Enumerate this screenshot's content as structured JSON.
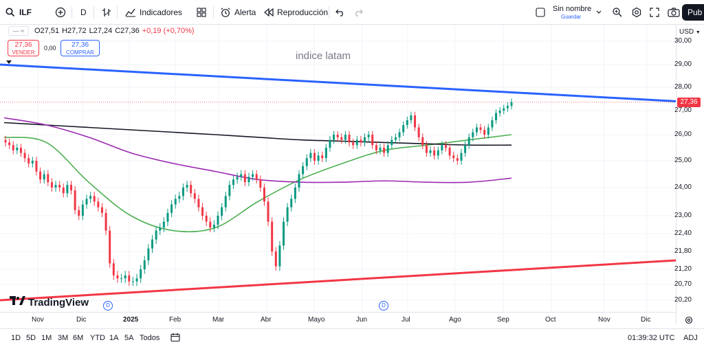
{
  "toolbar": {
    "symbol": "ILF",
    "interval": "D",
    "indicators_label": "Indicadores",
    "alert_label": "Alerta",
    "replay_label": "Reproducción",
    "layout_name": "Sin nombre",
    "save_label": "Guardar",
    "publish_label": "Pub"
  },
  "legend": {
    "open": "O27,51",
    "high": "H27,72",
    "low": "L27,24",
    "close": "C27,36",
    "change": "+0,19 (+0,70%)"
  },
  "trade": {
    "sell_price": "27,36",
    "sell_label": "VENDER",
    "spread": "0,00",
    "buy_price": "27,36",
    "buy_label": "COMPRAR"
  },
  "chart_title": "indice latam",
  "currency": "USD",
  "current_price": "27,36",
  "logo_text": "TradingView",
  "dividend_marker": "D",
  "bottom": {
    "ranges": [
      "1D",
      "5D",
      "1M",
      "3M",
      "6M",
      "YTD",
      "1A",
      "5A",
      "Todos"
    ],
    "clock": "01:39:32 UTC",
    "adj": "ADJ"
  },
  "colors": {
    "up": "#089981",
    "down": "#f23645",
    "blue_trend": "#2962ff",
    "red_trend": "#f23645",
    "ma_green": "#4caf50",
    "ma_black": "#131722",
    "ma_purple": "#9c27b0"
  },
  "chart_data": {
    "type": "candlestick",
    "title": "indice latam",
    "x_ticks": [
      "Nov",
      "Dic",
      "2025",
      "Feb",
      "Mar",
      "Abr",
      "Mayo",
      "Jun",
      "Jul",
      "Ago",
      "Sep",
      "Oct",
      "Nov",
      "Dic"
    ],
    "y_ticks": [
      "30,00",
      "29,00",
      "28,00",
      "27,00",
      "26,00",
      "25,00",
      "24,00",
      "23,00",
      "22,40",
      "21,80",
      "21,20",
      "20,70",
      "20,20"
    ],
    "ylim": [
      20.0,
      30.2
    ],
    "close_path": [
      25.7,
      25.6,
      25.4,
      25.5,
      25.3,
      25.1,
      24.9,
      25.0,
      24.6,
      24.3,
      24.5,
      24.2,
      24.0,
      24.1,
      24.0,
      23.8,
      24.1,
      23.9,
      23.2,
      23.0,
      23.4,
      23.6,
      23.7,
      23.5,
      23.3,
      23.1,
      22.5,
      21.4,
      21.0,
      20.9,
      20.9,
      21.0,
      20.8,
      20.8,
      20.9,
      21.2,
      21.5,
      21.9,
      22.2,
      22.5,
      22.6,
      22.8,
      23.1,
      23.4,
      23.6,
      23.7,
      24.0,
      24.1,
      23.8,
      23.6,
      23.3,
      23.0,
      22.8,
      22.6,
      22.7,
      23.0,
      23.3,
      23.7,
      24.1,
      24.3,
      24.4,
      24.5,
      24.2,
      24.4,
      24.5,
      24.3,
      24.0,
      23.5,
      22.8,
      21.8,
      21.3,
      22.0,
      22.8,
      23.3,
      23.6,
      24.0,
      24.5,
      24.8,
      25.1,
      25.3,
      25.0,
      25.2,
      25.1,
      25.5,
      25.8,
      26.0,
      25.9,
      25.8,
      26.0,
      25.7,
      25.6,
      25.8,
      25.7,
      25.9,
      26.0,
      25.6,
      25.4,
      25.5,
      25.3,
      25.6,
      25.8,
      25.9,
      26.1,
      26.4,
      26.6,
      26.8,
      26.3,
      25.9,
      25.6,
      25.3,
      25.4,
      25.2,
      25.4,
      25.6,
      25.5,
      25.2,
      25.1,
      25.0,
      25.3,
      25.6,
      25.9,
      26.1,
      26.3,
      26.2,
      26.0,
      26.3,
      26.6,
      26.9,
      27.0,
      27.1,
      27.2,
      27.36
    ],
    "trendlines": [
      {
        "name": "upper",
        "color": "#2962ff",
        "from": [
          0,
          29.0
        ],
        "to": [
          1,
          27.4
        ]
      },
      {
        "name": "lower",
        "color": "#f23645",
        "from": [
          0,
          20.2
        ],
        "to": [
          1,
          21.5
        ]
      }
    ],
    "moving_averages": [
      {
        "color": "#4caf50",
        "values": [
          25.9,
          25.7,
          24.2,
          23.0,
          22.5,
          22.6,
          23.5,
          24.3,
          24.9,
          25.4,
          25.6,
          25.8,
          26.0
        ]
      },
      {
        "color": "#131722",
        "values": [
          26.5,
          26.4,
          26.3,
          26.2,
          26.1,
          26.0,
          25.9,
          25.8,
          25.75,
          25.7,
          25.65,
          25.6,
          25.6
        ]
      },
      {
        "color": "#9c27b0",
        "values": [
          26.7,
          26.4,
          25.9,
          25.3,
          24.9,
          24.6,
          24.3,
          24.2,
          24.2,
          24.25,
          24.2,
          24.2,
          24.35
        ]
      }
    ]
  }
}
